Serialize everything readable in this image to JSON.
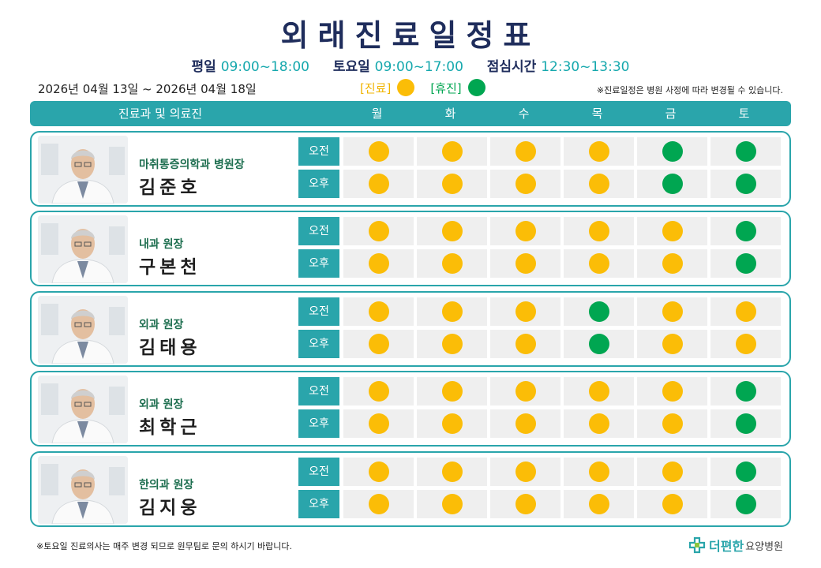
{
  "title": "외래진료일정표",
  "hours": {
    "weekday_label": "평일",
    "weekday_time": "09:00~18:00",
    "saturday_label": "토요일",
    "saturday_time": "09:00~17:00",
    "lunch_label": "점심시간",
    "lunch_time": "12:30~13:30"
  },
  "period": "2026년 04월 13일 ~ 2026년 04월 18일",
  "legend": {
    "open_label": "[진료]",
    "open_color": "#fbbd07",
    "closed_label": "[휴진]",
    "closed_color": "#00a651"
  },
  "note_top": "※진료일정은 병원 사정에 따라 변경될 수 있습니다.",
  "header": {
    "dept_col": "진료과 및 의료진",
    "days": [
      "월",
      "화",
      "수",
      "목",
      "금",
      "토"
    ]
  },
  "slot_labels": {
    "am": "오전",
    "pm": "오후"
  },
  "doctors": [
    {
      "dept": "마취통증의학과 병원장",
      "name": "김준호",
      "am": [
        "open",
        "open",
        "open",
        "open",
        "closed",
        "closed"
      ],
      "pm": [
        "open",
        "open",
        "open",
        "open",
        "closed",
        "closed"
      ]
    },
    {
      "dept": "내과 원장",
      "name": "구본천",
      "am": [
        "open",
        "open",
        "open",
        "open",
        "open",
        "closed"
      ],
      "pm": [
        "open",
        "open",
        "open",
        "open",
        "open",
        "closed"
      ]
    },
    {
      "dept": "외과 원장",
      "name": "김태용",
      "am": [
        "open",
        "open",
        "open",
        "closed",
        "open",
        "open"
      ],
      "pm": [
        "open",
        "open",
        "open",
        "closed",
        "open",
        "open"
      ]
    },
    {
      "dept": "외과 원장",
      "name": "최학근",
      "am": [
        "open",
        "open",
        "open",
        "open",
        "open",
        "closed"
      ],
      "pm": [
        "open",
        "open",
        "open",
        "open",
        "open",
        "closed"
      ]
    },
    {
      "dept": "한의과 원장",
      "name": "김지웅",
      "am": [
        "open",
        "open",
        "open",
        "open",
        "open",
        "closed"
      ],
      "pm": [
        "open",
        "open",
        "open",
        "open",
        "open",
        "closed"
      ]
    }
  ],
  "footer_note": "※토요일 진료의사는 매주 변경 되므로 원무팀로 문의 하시기 바랍니다.",
  "logo": {
    "brand": "더편한",
    "suffix": "요양병원",
    "icon": "medical-cross-icon"
  }
}
